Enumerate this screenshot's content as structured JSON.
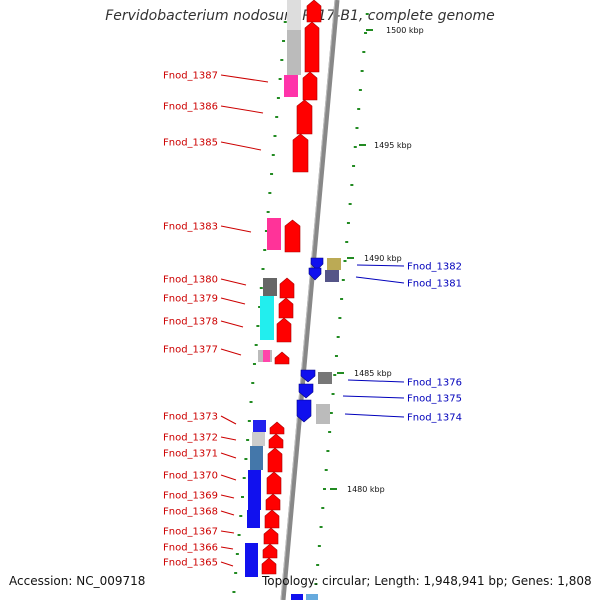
{
  "title": "Fervidobacterium nodosum Rt17-B1, complete genome",
  "footer": {
    "accession": "Accession: NC_009718",
    "summary": "Topology: circular; Length: 1,948,941 bp; Genes: 1,808"
  },
  "colors": {
    "forward": "#ff0000",
    "reverse": "#1010ee",
    "label_forward": "#cc0000",
    "label_reverse": "#0000bb",
    "backbone": "#888888",
    "gc_tick": "#228b22"
  },
  "kbp_marks": [
    {
      "label": "1500 kbp",
      "kbp": 1500
    },
    {
      "label": "1495 kbp",
      "kbp": 1495
    },
    {
      "label": "1490 kbp",
      "kbp": 1490
    },
    {
      "label": "1485 kbp",
      "kbp": 1485
    },
    {
      "label": "1480 kbp",
      "kbp": 1480
    }
  ],
  "genes_forward": [
    {
      "name": "Fnod_1387"
    },
    {
      "name": "Fnod_1386"
    },
    {
      "name": "Fnod_1385"
    },
    {
      "name": "Fnod_1383"
    },
    {
      "name": "Fnod_1380"
    },
    {
      "name": "Fnod_1379"
    },
    {
      "name": "Fnod_1378"
    },
    {
      "name": "Fnod_1377"
    },
    {
      "name": "Fnod_1373"
    },
    {
      "name": "Fnod_1372"
    },
    {
      "name": "Fnod_1371"
    },
    {
      "name": "Fnod_1370"
    },
    {
      "name": "Fnod_1369"
    },
    {
      "name": "Fnod_1368"
    },
    {
      "name": "Fnod_1367"
    },
    {
      "name": "Fnod_1366"
    },
    {
      "name": "Fnod_1365"
    }
  ],
  "genes_reverse": [
    {
      "name": "Fnod_1382"
    },
    {
      "name": "Fnod_1381"
    },
    {
      "name": "Fnod_1376"
    },
    {
      "name": "Fnod_1375"
    },
    {
      "name": "Fnod_1374"
    }
  ]
}
